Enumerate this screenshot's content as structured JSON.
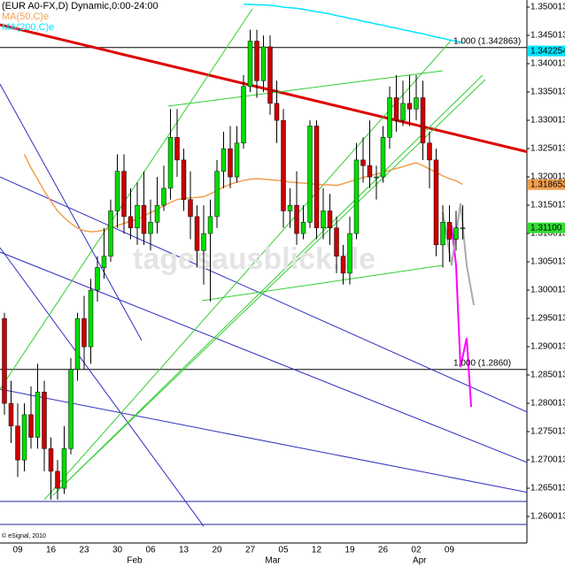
{
  "chart_data": {
    "type": "candlestick",
    "title": "(EUR A0-FX,D) Dynamic,0:00-24:00",
    "indicators": [
      {
        "name": "MA(50,C)e",
        "color": "#f0a050"
      },
      {
        "name": "MA(200,C)e",
        "color": "#00e5ff"
      }
    ],
    "watermark": "tagesausblick.de",
    "copyright": "© eSignal, 2010",
    "categories": [
      null,
      null,
      "09",
      null,
      null,
      null,
      null,
      "16",
      null,
      null,
      null,
      null,
      "23",
      null,
      null,
      null,
      null,
      "30",
      null,
      null,
      null,
      null,
      "06",
      null,
      null,
      null,
      null,
      "13",
      null,
      null,
      null,
      null,
      "20",
      null,
      null,
      null,
      null,
      "27",
      null,
      null,
      null,
      null,
      "05",
      null,
      null,
      null,
      null,
      "12",
      null,
      null,
      null,
      null,
      "19",
      null,
      null,
      null,
      null,
      "26",
      null,
      null,
      null,
      null,
      "02",
      null,
      null,
      null,
      null,
      "09",
      null,
      null
    ],
    "months": [
      {
        "label": "Feb",
        "index": 19.6
      },
      {
        "label": "Mar",
        "index": 40.4
      },
      {
        "label": "Apr",
        "index": 62.5
      }
    ],
    "open": [
      1.295,
      1.28,
      1.276,
      1.27,
      1.278,
      1.274,
      1.282,
      1.272,
      1.268,
      1.265,
      1.272,
      1.286,
      1.295,
      1.29,
      1.3,
      1.304,
      1.306,
      1.314,
      1.321,
      1.313,
      1.311,
      1.315,
      1.31,
      1.312,
      1.315,
      1.318,
      1.327,
      1.323,
      1.316,
      1.313,
      1.307,
      1.31,
      1.313,
      1.321,
      1.325,
      1.32,
      1.326,
      1.336,
      1.344,
      1.337,
      1.343,
      1.333,
      1.33,
      1.314,
      1.315,
      1.31,
      1.312,
      1.329,
      1.311,
      1.314,
      1.311,
      1.306,
      1.303,
      1.31,
      1.323,
      1.322,
      1.32,
      1.32,
      1.327,
      1.334,
      1.33,
      1.333,
      1.332,
      1.334,
      1.326,
      1.323,
      1.308,
      1.312,
      1.309,
      1.311
    ],
    "high": [
      1.296,
      1.284,
      1.28,
      1.28,
      1.283,
      1.287,
      1.284,
      1.274,
      1.27,
      1.276,
      1.288,
      1.296,
      1.299,
      1.302,
      1.306,
      1.311,
      1.316,
      1.324,
      1.324,
      1.318,
      1.319,
      1.321,
      1.316,
      1.32,
      1.322,
      1.332,
      1.332,
      1.325,
      1.321,
      1.315,
      1.315,
      1.316,
      1.323,
      1.328,
      1.329,
      1.329,
      1.338,
      1.346,
      1.346,
      1.345,
      1.345,
      1.337,
      1.332,
      1.318,
      1.321,
      1.315,
      1.33,
      1.33,
      1.318,
      1.317,
      1.313,
      1.308,
      1.313,
      1.326,
      1.327,
      1.33,
      1.322,
      1.329,
      1.336,
      1.338,
      1.337,
      1.338,
      1.338,
      1.337,
      1.328,
      1.325,
      1.315,
      1.315,
      1.314,
      1.315
    ],
    "low": [
      1.278,
      1.273,
      1.267,
      1.268,
      1.272,
      1.272,
      1.268,
      1.263,
      1.263,
      1.264,
      1.271,
      1.284,
      1.286,
      1.287,
      1.298,
      1.302,
      1.305,
      1.311,
      1.31,
      1.309,
      1.308,
      1.308,
      1.307,
      1.31,
      1.314,
      1.316,
      1.32,
      1.314,
      1.309,
      1.304,
      1.301,
      1.298,
      1.311,
      1.318,
      1.318,
      1.319,
      1.325,
      1.335,
      1.334,
      1.335,
      1.331,
      1.326,
      1.311,
      1.311,
      1.308,
      1.309,
      1.311,
      1.309,
      1.309,
      1.308,
      1.303,
      1.301,
      1.301,
      1.309,
      1.319,
      1.318,
      1.316,
      1.319,
      1.325,
      1.328,
      1.329,
      1.329,
      1.33,
      1.323,
      1.318,
      1.306,
      1.304,
      1.305,
      1.307,
      1.309
    ],
    "close": [
      1.28,
      1.276,
      1.27,
      1.278,
      1.274,
      1.282,
      1.272,
      1.268,
      1.265,
      1.272,
      1.286,
      1.295,
      1.29,
      1.3,
      1.304,
      1.306,
      1.314,
      1.321,
      1.313,
      1.311,
      1.315,
      1.31,
      1.312,
      1.315,
      1.318,
      1.327,
      1.323,
      1.316,
      1.313,
      1.307,
      1.31,
      1.313,
      1.321,
      1.325,
      1.32,
      1.326,
      1.336,
      1.344,
      1.337,
      1.343,
      1.333,
      1.33,
      1.314,
      1.315,
      1.31,
      1.312,
      1.329,
      1.311,
      1.314,
      1.311,
      1.306,
      1.303,
      1.31,
      1.323,
      1.322,
      1.32,
      1.32,
      1.327,
      1.334,
      1.33,
      1.333,
      1.332,
      1.334,
      1.326,
      1.323,
      1.308,
      1.312,
      1.309,
      1.311,
      1.311
    ],
    "up_color": "#00dd00",
    "down_color": "#cc0000",
    "ma50": [
      null,
      null,
      null,
      1.324,
      1.3216,
      1.3196,
      1.3175,
      1.3157,
      1.314,
      1.3128,
      1.3118,
      1.311,
      1.3105,
      1.3103,
      1.3104,
      1.3106,
      1.311,
      1.3114,
      1.3118,
      1.3122,
      1.3125,
      1.3131,
      1.3137,
      1.3143,
      1.3149,
      1.3155,
      1.316,
      1.3162,
      1.3163,
      1.3164,
      1.3165,
      1.317,
      1.3176,
      1.3182,
      1.3187,
      1.3191,
      1.3194,
      1.3196,
      1.3197,
      1.3196,
      1.3195,
      1.3194,
      1.3193,
      1.3191,
      1.319,
      1.3189,
      1.3188,
      1.3187,
      1.3186,
      1.3186,
      1.3185,
      1.3188,
      1.3192,
      1.3195,
      1.3199,
      1.3202,
      1.3205,
      1.3208,
      1.3212,
      1.3215,
      1.3218,
      1.3222,
      1.3225,
      1.322,
      1.3214,
      1.3208,
      1.3202,
      1.3197,
      1.3193,
      1.3187
    ],
    "ma200": [
      null,
      null,
      null,
      null,
      null,
      null,
      null,
      null,
      null,
      null,
      null,
      null,
      null,
      null,
      null,
      null,
      null,
      null,
      null,
      null,
      null,
      null,
      null,
      null,
      null,
      null,
      null,
      null,
      null,
      null,
      null,
      null,
      null,
      null,
      null,
      null,
      1.3505,
      1.3505,
      1.3504,
      1.3504,
      1.3503,
      1.3502,
      1.35,
      1.3499,
      1.3498,
      1.3496,
      1.3494,
      1.3492,
      1.349,
      1.3488,
      1.3485,
      1.3483,
      1.348,
      1.3478,
      1.3475,
      1.3473,
      1.347,
      1.3468,
      1.3465,
      1.3463,
      1.346,
      1.3458,
      1.3455,
      1.3453,
      1.345,
      1.3447,
      1.3445,
      1.3442,
      1.344,
      1.3437
    ],
    "levels": [
      {
        "value": 1.342863,
        "label": "1.000 (1.342863)",
        "color": "#000000"
      },
      {
        "value": 1.286,
        "label": "1.000 (1.2860)",
        "color": "#000000"
      },
      {
        "value": 1.26267,
        "color": "#2020a0"
      },
      {
        "value": 1.25861,
        "color": "#2020a0"
      }
    ],
    "trendlines": [
      {
        "color": "#dd0000",
        "width": 3,
        "points": [
          [
            -0.67,
            1.34689
          ],
          [
            84.4,
            1.32283
          ]
        ]
      },
      {
        "color": "#3030c0",
        "width": 1,
        "points": [
          [
            -0.67,
            1.33642
          ],
          [
            20.67,
            1.29111
          ]
        ]
      },
      {
        "color": "#3030c0",
        "width": 1,
        "points": [
          [
            -0.67,
            1.32001
          ],
          [
            84.4,
            1.27548
          ]
        ]
      },
      {
        "color": "#3030c0",
        "width": 1,
        "points": [
          [
            -0.67,
            1.30751
          ],
          [
            30,
            1.25829
          ]
        ]
      },
      {
        "color": "#3030c0",
        "width": 1,
        "points": [
          [
            -0.67,
            1.30673
          ],
          [
            84.4,
            1.26689
          ]
        ]
      },
      {
        "color": "#3030c0",
        "width": 1,
        "points": [
          [
            -0.67,
            1.28251
          ],
          [
            84.4,
            1.26298
          ]
        ]
      },
      {
        "color": "#33cc33",
        "width": 1,
        "points": [
          [
            6,
            1.26298
          ],
          [
            67.33,
            1.34423
          ]
        ]
      },
      {
        "color": "#33cc33",
        "width": 1,
        "points": [
          [
            7.33,
            1.26376
          ],
          [
            72,
            1.33798
          ]
        ]
      },
      {
        "color": "#33cc33",
        "width": 1,
        "points": [
          [
            8,
            1.26454
          ],
          [
            72.4,
            1.3372
          ]
        ]
      },
      {
        "color": "#33cc33",
        "width": 1,
        "points": [
          [
            -0.67,
            1.28251
          ],
          [
            37.33,
            1.3497
          ]
        ]
      },
      {
        "color": "#33cc33",
        "width": 1,
        "points": [
          [
            24.67,
            1.33251
          ],
          [
            66,
            1.33876
          ]
        ]
      },
      {
        "color": "#33cc33",
        "width": 1,
        "points": [
          [
            29.73,
            1.29814
          ],
          [
            66,
            1.30439
          ]
        ]
      },
      {
        "color": "#ff00ff",
        "width": 2,
        "points": [
          [
            67.33,
            1.31142
          ],
          [
            68,
            1.30439
          ],
          [
            68.4,
            1.29345
          ],
          [
            68.67,
            1.28642
          ],
          [
            69.6,
            1.29157
          ],
          [
            70.27,
            1.27939
          ]
        ]
      },
      {
        "color": "#aaaaaa",
        "width": 2,
        "points": [
          [
            66,
            1.31376
          ],
          [
            67.33,
            1.30439
          ],
          [
            68.67,
            1.31533
          ],
          [
            69.6,
            1.30439
          ],
          [
            70.67,
            1.29736
          ]
        ]
      }
    ],
    "price_labels": [
      {
        "value": 1.342254,
        "color": "#00e5ff"
      },
      {
        "value": 1.318653,
        "color": "#f0a050"
      },
      {
        "value": 1.311,
        "label": "1.31100",
        "color": "#33dd33"
      }
    ],
    "xlim": [
      -0.6667,
      78.6667
    ],
    "ylim": [
      1.25533,
      1.351263
    ],
    "yticks": [
      1.260013,
      1.265013,
      1.270013,
      1.275013,
      1.280013,
      1.285013,
      1.290013,
      1.295013,
      1.300013,
      1.305013,
      1.310013,
      1.315013,
      1.320013,
      1.325013,
      1.330013,
      1.335013,
      1.340013,
      1.345013,
      1.350013
    ]
  }
}
